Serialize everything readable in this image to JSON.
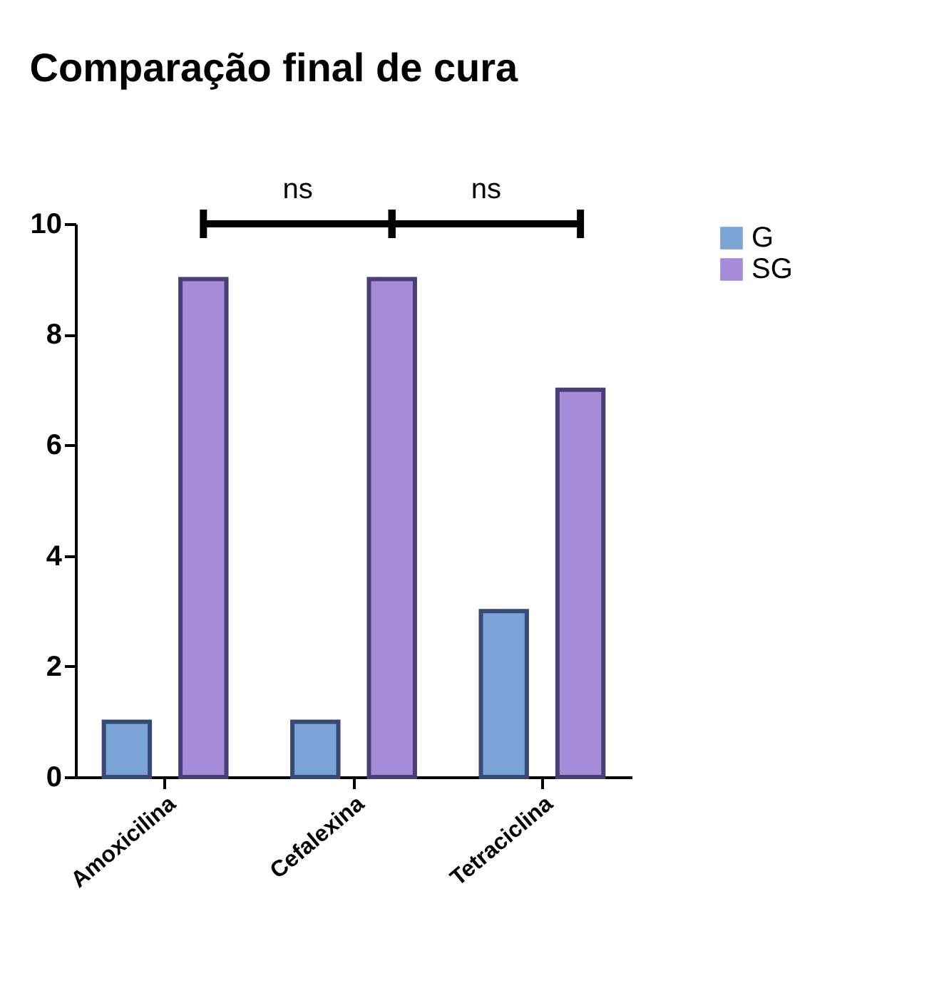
{
  "chart_data": {
    "type": "bar",
    "title": "Comparação final de cura",
    "categories": [
      "Amoxicilina",
      "Cefalexina",
      "Tetraciclina"
    ],
    "series": [
      {
        "name": "G",
        "color": "#7ba3d6",
        "values": [
          1,
          1,
          3
        ]
      },
      {
        "name": "SG",
        "color": "#a68bd9",
        "values": [
          9,
          9,
          7
        ]
      }
    ],
    "ylim": [
      0,
      10
    ],
    "yticks": [
      0,
      2,
      4,
      6,
      8,
      10
    ],
    "grid": false,
    "legend": "top right",
    "annotations": [
      "ns",
      "ns"
    ]
  }
}
